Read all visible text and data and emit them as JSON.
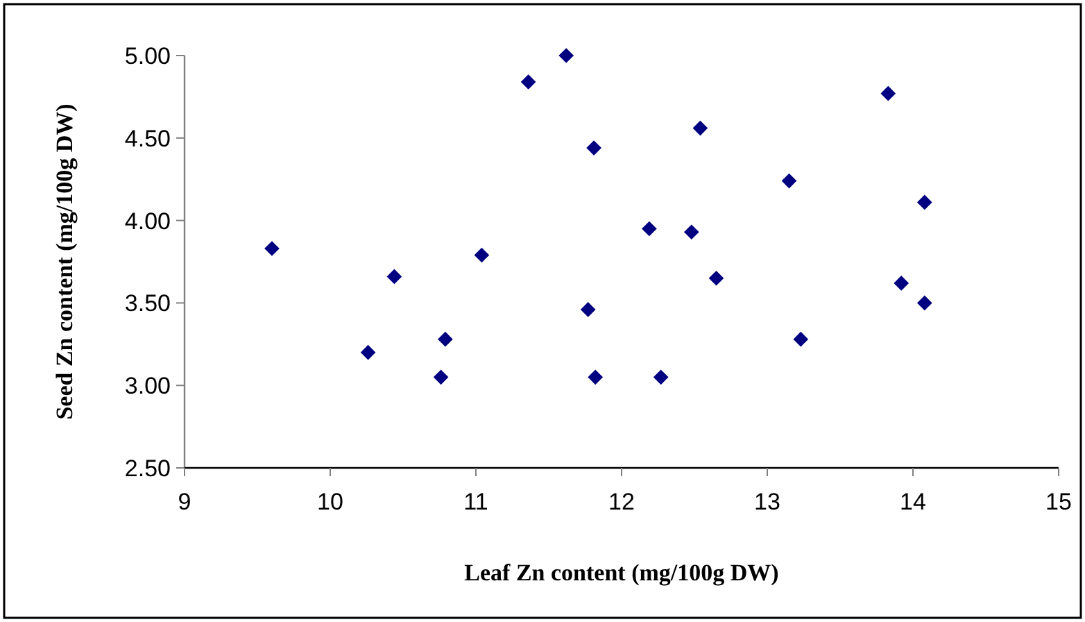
{
  "chart_data": {
    "type": "scatter",
    "xlabel": "Leaf Zn content (mg/100g DW)",
    "ylabel": "Seed Zn content (mg/100g DW)",
    "xlim": [
      9,
      15
    ],
    "xticks": [
      9,
      10,
      11,
      12,
      13,
      14,
      15
    ],
    "ylim": [
      2.5,
      5
    ],
    "yticks": [
      {
        "value": 2.5,
        "label": "2.50"
      },
      {
        "value": 3,
        "label": "3.00"
      },
      {
        "value": 3.5,
        "label": "3.50"
      },
      {
        "value": 4,
        "label": "4.00"
      },
      {
        "value": 4.5,
        "label": "4.50"
      },
      {
        "value": 5,
        "label": "5.00"
      }
    ],
    "grid": false,
    "marker": "diamond",
    "series": [
      {
        "color": "#000080",
        "x": [
          9.6,
          10.26,
          10.44,
          10.76,
          10.79,
          11.04,
          11.36,
          11.62,
          11.81,
          11.77,
          11.82,
          12.19,
          12.27,
          12.48,
          12.54,
          12.65,
          13.15,
          13.23,
          13.83,
          13.92,
          14.08,
          14.08
        ],
        "values": [
          3.83,
          3.2,
          3.66,
          3.05,
          3.28,
          3.79,
          4.84,
          5.0,
          4.44,
          3.46,
          3.05,
          3.95,
          3.05,
          3.93,
          4.56,
          3.65,
          4.24,
          3.28,
          4.77,
          3.62,
          4.11,
          3.5
        ]
      }
    ]
  }
}
